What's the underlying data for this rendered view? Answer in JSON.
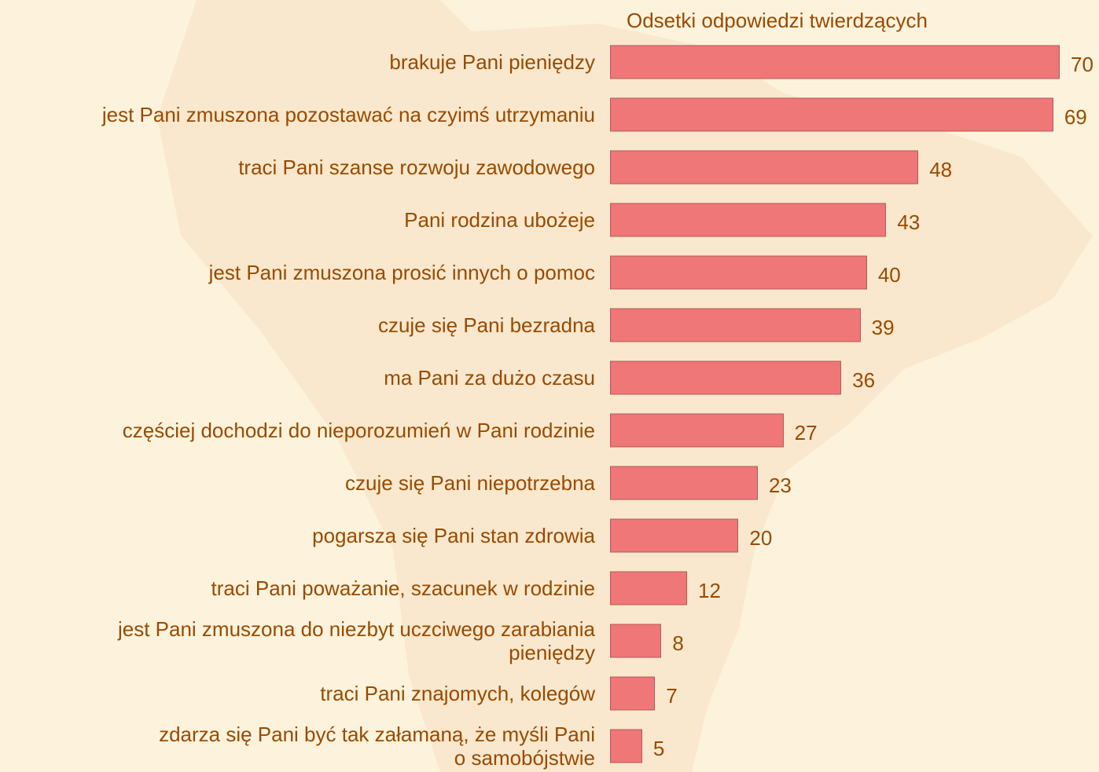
{
  "chart_data": {
    "type": "bar",
    "orientation": "horizontal",
    "title": "Odsetki odpowiedzi twierdzących",
    "categories": [
      "brakuje Pani pieniędzy",
      "jest Pani zmuszona pozostawać na czyimś utrzymaniu",
      "traci Pani szanse rozwoju zawodowego",
      "Pani rodzina ubożeje",
      "jest Pani zmuszona prosić innych o pomoc",
      "czuje się Pani bezradna",
      "ma Pani za dużo czasu",
      "częściej dochodzi do nieporozumień w Pani rodzinie",
      "czuje się Pani niepotrzebna ",
      "pogarsza się Pani stan zdrowia",
      "traci Pani poważanie, szacunek w rodzinie",
      "jest Pani zmuszona do niezbyt uczciwego zarabiania \npieniędzy",
      "traci Pani znajomych, kolegów",
      "zdarza się Pani być tak załamaną, że myśli Pani\no samobójstwie"
    ],
    "values": [
      70,
      69,
      48,
      43,
      40,
      39,
      36,
      27,
      23,
      20,
      12,
      8,
      7,
      5
    ],
    "color": "#ef7777"
  }
}
